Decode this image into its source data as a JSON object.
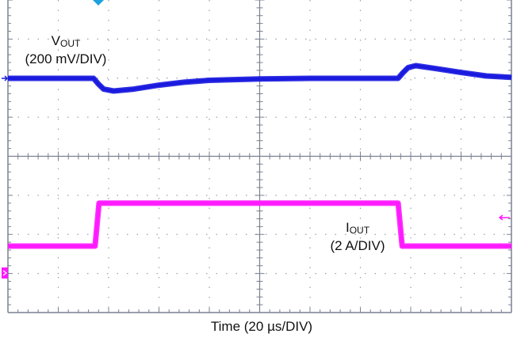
{
  "chart_data": {
    "type": "line",
    "title": "",
    "xlabel": "Time (20 µs/DIV)",
    "x_unit": "µs",
    "xlim": [
      0,
      200
    ],
    "x_divisions": 10,
    "y_divisions": 8,
    "grid": true,
    "series": [
      {
        "name": "VOUT",
        "label_main": "V",
        "label_sub": "OUT",
        "scale": "(200 mV/DIV)",
        "unit": "mV (deviation)",
        "color": "#1a1adf",
        "x": [
          0,
          34,
          36,
          38,
          42,
          50,
          60,
          70,
          80,
          100,
          120,
          150,
          155,
          157,
          159,
          162,
          170,
          180,
          190,
          200
        ],
        "y": [
          0,
          0,
          -30,
          -55,
          -65,
          -55,
          -35,
          -20,
          -10,
          -3,
          0,
          0,
          0,
          30,
          55,
          65,
          50,
          30,
          12,
          5
        ]
      },
      {
        "name": "IOUT",
        "label_main": "I",
        "label_sub": "OUT",
        "scale": "(2 A/DIV)",
        "unit": "A (step, relative to low level)",
        "color": "#ff1aff",
        "x": [
          0,
          34.6,
          36.2,
          155,
          156.6,
          200
        ],
        "y": [
          0,
          0,
          2.2,
          2.2,
          0,
          0
        ]
      }
    ],
    "markers": {
      "trigger_position_color": "#1fa0e0",
      "ch1_ground_arrow_color": "#1a1adf",
      "ch2_ground_marker_color": "#ff1aff",
      "trigger_level_arrow_color": "#ff1aff"
    }
  }
}
